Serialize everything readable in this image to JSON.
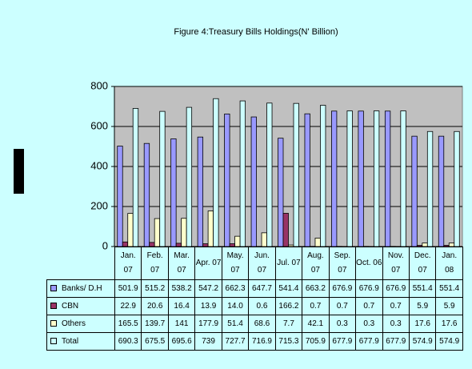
{
  "chart_data": {
    "type": "bar",
    "title": "Figure 4:Treasury Bills Holdings(N' Billion)",
    "categories": [
      "Jan. 07",
      "Feb. 07",
      "Mar. 07",
      "Apr. 07",
      "May. 07",
      "Jun. 07",
      "Jul. 07",
      "Aug. 07",
      "Sep. 07",
      "Oct. 06",
      "Nov. 07",
      "Dec. 07",
      "Jan. 08"
    ],
    "series": [
      {
        "name": "Banks/ D.H",
        "color": "#9999ff",
        "values": [
          501.9,
          515.2,
          538.2,
          547.2,
          662.3,
          647.7,
          541.4,
          663.2,
          676.9,
          676.9,
          676.9,
          551.4,
          551.4
        ]
      },
      {
        "name": "CBN",
        "color": "#993366",
        "values": [
          22.9,
          20.6,
          16.4,
          13.9,
          14.0,
          0.6,
          166.2,
          0.7,
          0.7,
          0.7,
          0.7,
          5.9,
          5.9
        ],
        "value_labels": [
          "22.9",
          "20.6",
          "16.4",
          "13.9",
          "14.0",
          "0.6",
          "166.2",
          "0.7",
          "0.7",
          "0.7",
          "0.7",
          "5.9",
          "5.9"
        ]
      },
      {
        "name": "Others",
        "color": "#ffffcc",
        "values": [
          165.5,
          139.7,
          141,
          177.9,
          51.4,
          68.6,
          7.7,
          42.1,
          0.3,
          0.3,
          0.3,
          17.6,
          17.6
        ]
      },
      {
        "name": "Total",
        "color": "#ccffff",
        "values": [
          690.3,
          675.5,
          695.6,
          739,
          727.7,
          716.9,
          715.3,
          705.9,
          677.9,
          677.9,
          677.9,
          574.9,
          574.9
        ]
      }
    ],
    "ylim": [
      0,
      800
    ],
    "yticks": [
      0,
      200,
      400,
      600,
      800
    ],
    "grid": true
  }
}
